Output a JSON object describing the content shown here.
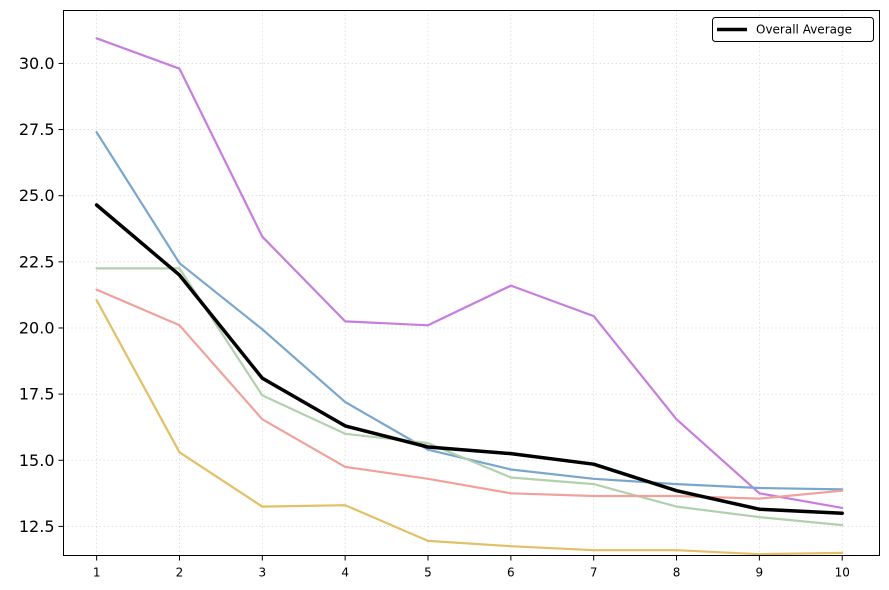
{
  "chart_data": {
    "type": "line",
    "x": [
      1,
      2,
      3,
      4,
      5,
      6,
      7,
      8,
      9,
      10
    ],
    "xlim": [
      0.6,
      10.45
    ],
    "ylim": [
      11.4,
      32.0
    ],
    "yticks": [
      12.5,
      15.0,
      17.5,
      20.0,
      22.5,
      25.0,
      27.5,
      30.0
    ],
    "ytick_labels": [
      "12.5",
      "15.0",
      "17.5",
      "20.0",
      "22.5",
      "25.0",
      "27.5",
      "30.0"
    ],
    "xtick_labels": [
      "1",
      "2",
      "3",
      "4",
      "5",
      "6",
      "7",
      "8",
      "9",
      "10"
    ],
    "grid": true,
    "legend_position": "top-right",
    "series": [
      {
        "color": "#c77dde",
        "values": [
          30.95,
          29.8,
          23.45,
          20.25,
          20.1,
          21.6,
          20.45,
          16.55,
          13.75,
          13.2
        ]
      },
      {
        "color": "#79a6cc",
        "values": [
          27.4,
          22.45,
          19.95,
          17.2,
          15.4,
          14.65,
          14.3,
          14.1,
          13.95,
          13.9
        ]
      },
      {
        "color": "#b1d1ad",
        "values": [
          22.25,
          22.25,
          17.45,
          16.0,
          15.65,
          14.35,
          14.1,
          13.25,
          12.85,
          12.55
        ]
      },
      {
        "color": "#f0a19b",
        "values": [
          21.45,
          20.1,
          16.55,
          14.75,
          14.3,
          13.75,
          13.65,
          13.65,
          13.55,
          13.85
        ]
      },
      {
        "color": "#e3bf66",
        "values": [
          21.05,
          15.3,
          13.25,
          13.3,
          11.95,
          11.75,
          11.6,
          11.6,
          11.45,
          11.5
        ]
      },
      {
        "name": "Overall Average",
        "color": "#000000",
        "values": [
          24.65,
          22.0,
          18.1,
          16.3,
          15.5,
          15.25,
          14.85,
          13.85,
          13.15,
          13.0
        ]
      }
    ],
    "legend": [
      "Overall Average"
    ]
  }
}
